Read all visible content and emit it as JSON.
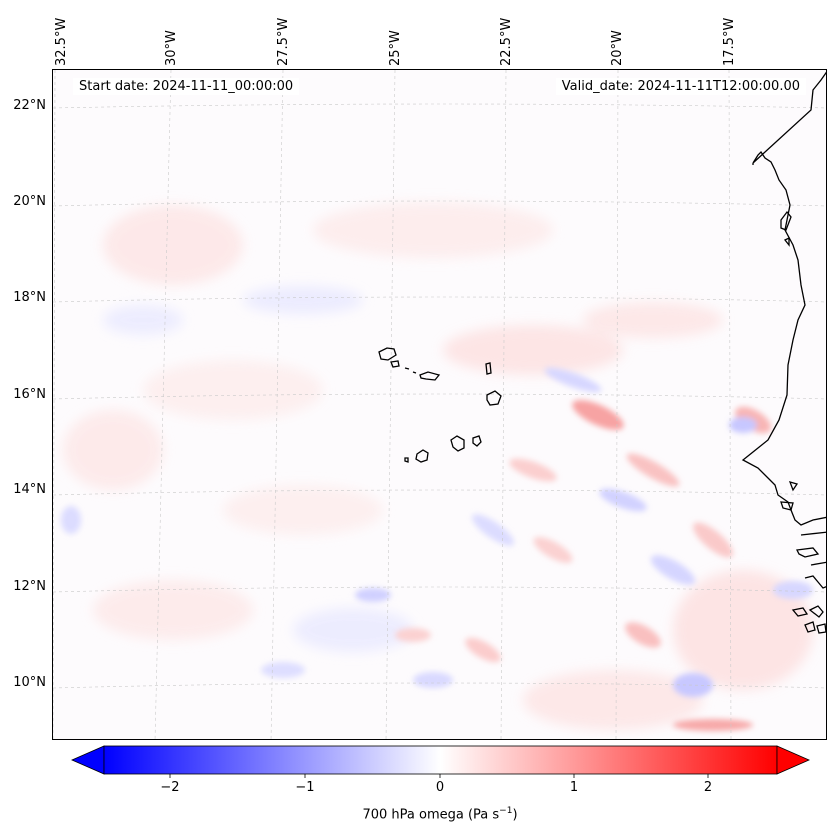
{
  "map": {
    "start_date": "Start date: 2024-11-11_00:00:00",
    "valid_date": "Valid_date: 2024-11-11T12:00:00.00",
    "lon_labels": [
      "32.5°W",
      "30°W",
      "27.5°W",
      "25°W",
      "22.5°W",
      "20°W",
      "17.5°W"
    ],
    "lat_labels": [
      "22°N",
      "20°N",
      "18°N",
      "16°N",
      "14°N",
      "12°N",
      "10°N"
    ],
    "field_type": "filled-contour",
    "variable": "700 hPa omega",
    "coastlines": true,
    "gridlines": true,
    "gridline_style": "dashed"
  },
  "colorbar": {
    "label_text": "700 hPa omega (Pa s",
    "label_exp": "−1",
    "label_close": ")",
    "ticks": [
      "−2",
      "−1",
      "0",
      "1",
      "2"
    ],
    "tick_values": [
      -2,
      -1,
      0,
      1,
      2
    ],
    "range": [
      -2.5,
      2.5
    ],
    "extend": "both",
    "colormap": "bwr",
    "colors": {
      "min": "#0000ff",
      "mid": "#ffffff",
      "max": "#ff0000"
    }
  }
}
